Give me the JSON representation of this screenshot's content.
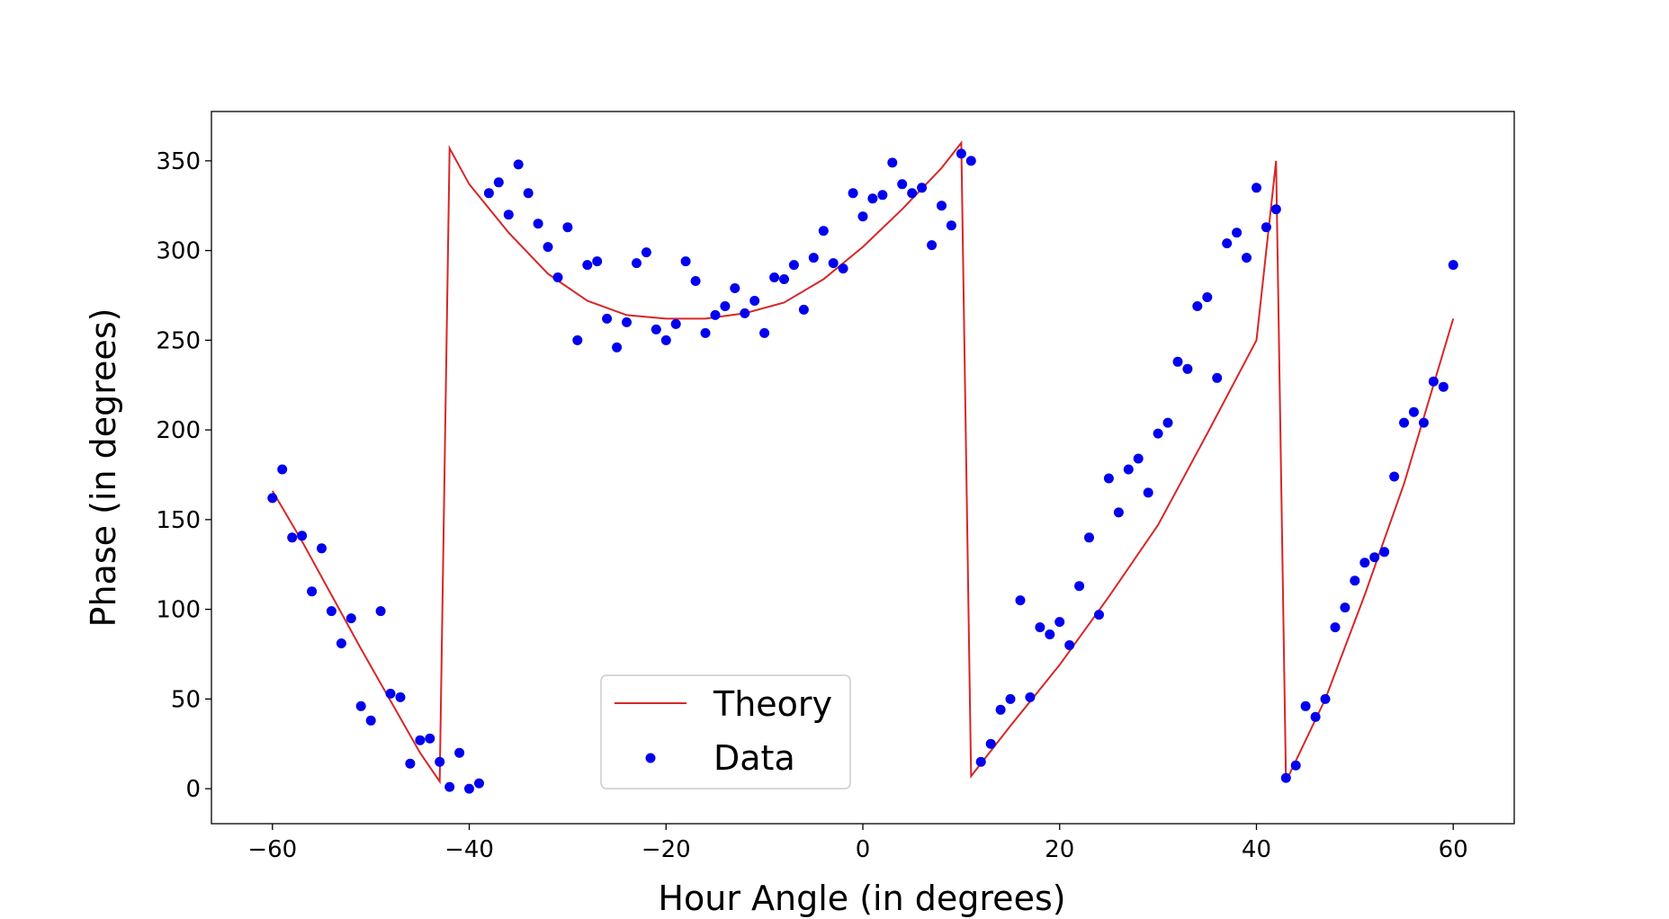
{
  "chart_data": {
    "type": "scatter",
    "title": "",
    "xlabel": "Hour Angle (in degrees)",
    "ylabel": "Phase (in degrees)",
    "xlim": [
      -66.2,
      66.2
    ],
    "ylim": [
      -19.5,
      377.5
    ],
    "xticks": [
      -60,
      -40,
      -20,
      0,
      20,
      40,
      60
    ],
    "xtick_labels": [
      "−60",
      "−40",
      "−20",
      "0",
      "20",
      "40",
      "60"
    ],
    "yticks": [
      0,
      50,
      100,
      150,
      200,
      250,
      300,
      350
    ],
    "ytick_labels": [
      "0",
      "50",
      "100",
      "150",
      "200",
      "250",
      "300",
      "350"
    ],
    "grid": false,
    "legend": {
      "position": "lower-center"
    },
    "series": [
      {
        "name": "Theory",
        "kind": "line",
        "color": "#d62728",
        "x": [
          -60,
          -57,
          -54,
          -51,
          -48,
          -45,
          -43,
          -42,
          -40,
          -36,
          -32,
          -28,
          -24,
          -20,
          -16,
          -12,
          -8,
          -4,
          0,
          4,
          8,
          10,
          11,
          15,
          20,
          25,
          30,
          35,
          40,
          42,
          43,
          47,
          51,
          55,
          60
        ],
        "y": [
          166,
          138,
          108,
          78,
          49,
          20,
          4,
          357,
          337,
          310,
          287,
          272,
          264,
          262,
          262,
          265,
          271,
          284,
          302,
          323,
          346,
          360,
          7,
          35,
          69,
          107,
          147,
          198,
          250,
          350,
          4,
          50,
          108,
          170,
          262
        ]
      },
      {
        "name": "Data",
        "kind": "scatter",
        "color": "#0000ee",
        "x": [
          -60,
          -59,
          -58,
          -57,
          -56,
          -55,
          -54,
          -53,
          -52,
          -51,
          -50,
          -49,
          -48,
          -47,
          -46,
          -45,
          -44,
          -43,
          -42,
          -41,
          -40,
          -39,
          -38,
          -37,
          -36,
          -35,
          -34,
          -33,
          -32,
          -31,
          -30,
          -29,
          -28,
          -27,
          -26,
          -25,
          -24,
          -23,
          -22,
          -21,
          -20,
          -19,
          -18,
          -17,
          -16,
          -15,
          -14,
          -13,
          -12,
          -11,
          -10,
          -9,
          -8,
          -7,
          -6,
          -5,
          -4,
          -3,
          -2,
          -1,
          0,
          1,
          2,
          3,
          4,
          5,
          6,
          7,
          8,
          9,
          10,
          11,
          12,
          13,
          14,
          15,
          16,
          17,
          18,
          19,
          20,
          21,
          22,
          23,
          24,
          25,
          26,
          27,
          28,
          29,
          30,
          31,
          32,
          33,
          34,
          35,
          36,
          37,
          38,
          39,
          40,
          41,
          42,
          43,
          44,
          45,
          46,
          47,
          48,
          49,
          50,
          51,
          52,
          53,
          54,
          55,
          56,
          57,
          58,
          59,
          60
        ],
        "y": [
          162,
          178,
          140,
          141,
          110,
          134,
          99,
          81,
          95,
          46,
          38,
          99,
          53,
          51,
          14,
          27,
          28,
          15,
          1,
          20,
          0,
          3,
          332,
          338,
          320,
          348,
          332,
          315,
          302,
          285,
          313,
          250,
          292,
          294,
          262,
          246,
          260,
          293,
          299,
          256,
          250,
          259,
          294,
          283,
          254,
          264,
          269,
          279,
          265,
          272,
          254,
          285,
          284,
          292,
          267,
          296,
          311,
          293,
          290,
          332,
          319,
          329,
          331,
          349,
          337,
          332,
          335,
          303,
          325,
          314,
          354,
          350,
          15,
          25,
          44,
          50,
          105,
          51,
          90,
          86,
          93,
          80,
          113,
          140,
          97,
          173,
          154,
          178,
          184,
          165,
          198,
          204,
          238,
          234,
          269,
          274,
          229,
          304,
          310,
          296,
          335,
          313,
          323,
          6,
          13,
          46,
          40,
          50,
          90,
          101,
          116,
          126,
          129,
          132,
          174,
          204,
          210,
          204,
          227,
          224,
          292
        ]
      }
    ]
  }
}
